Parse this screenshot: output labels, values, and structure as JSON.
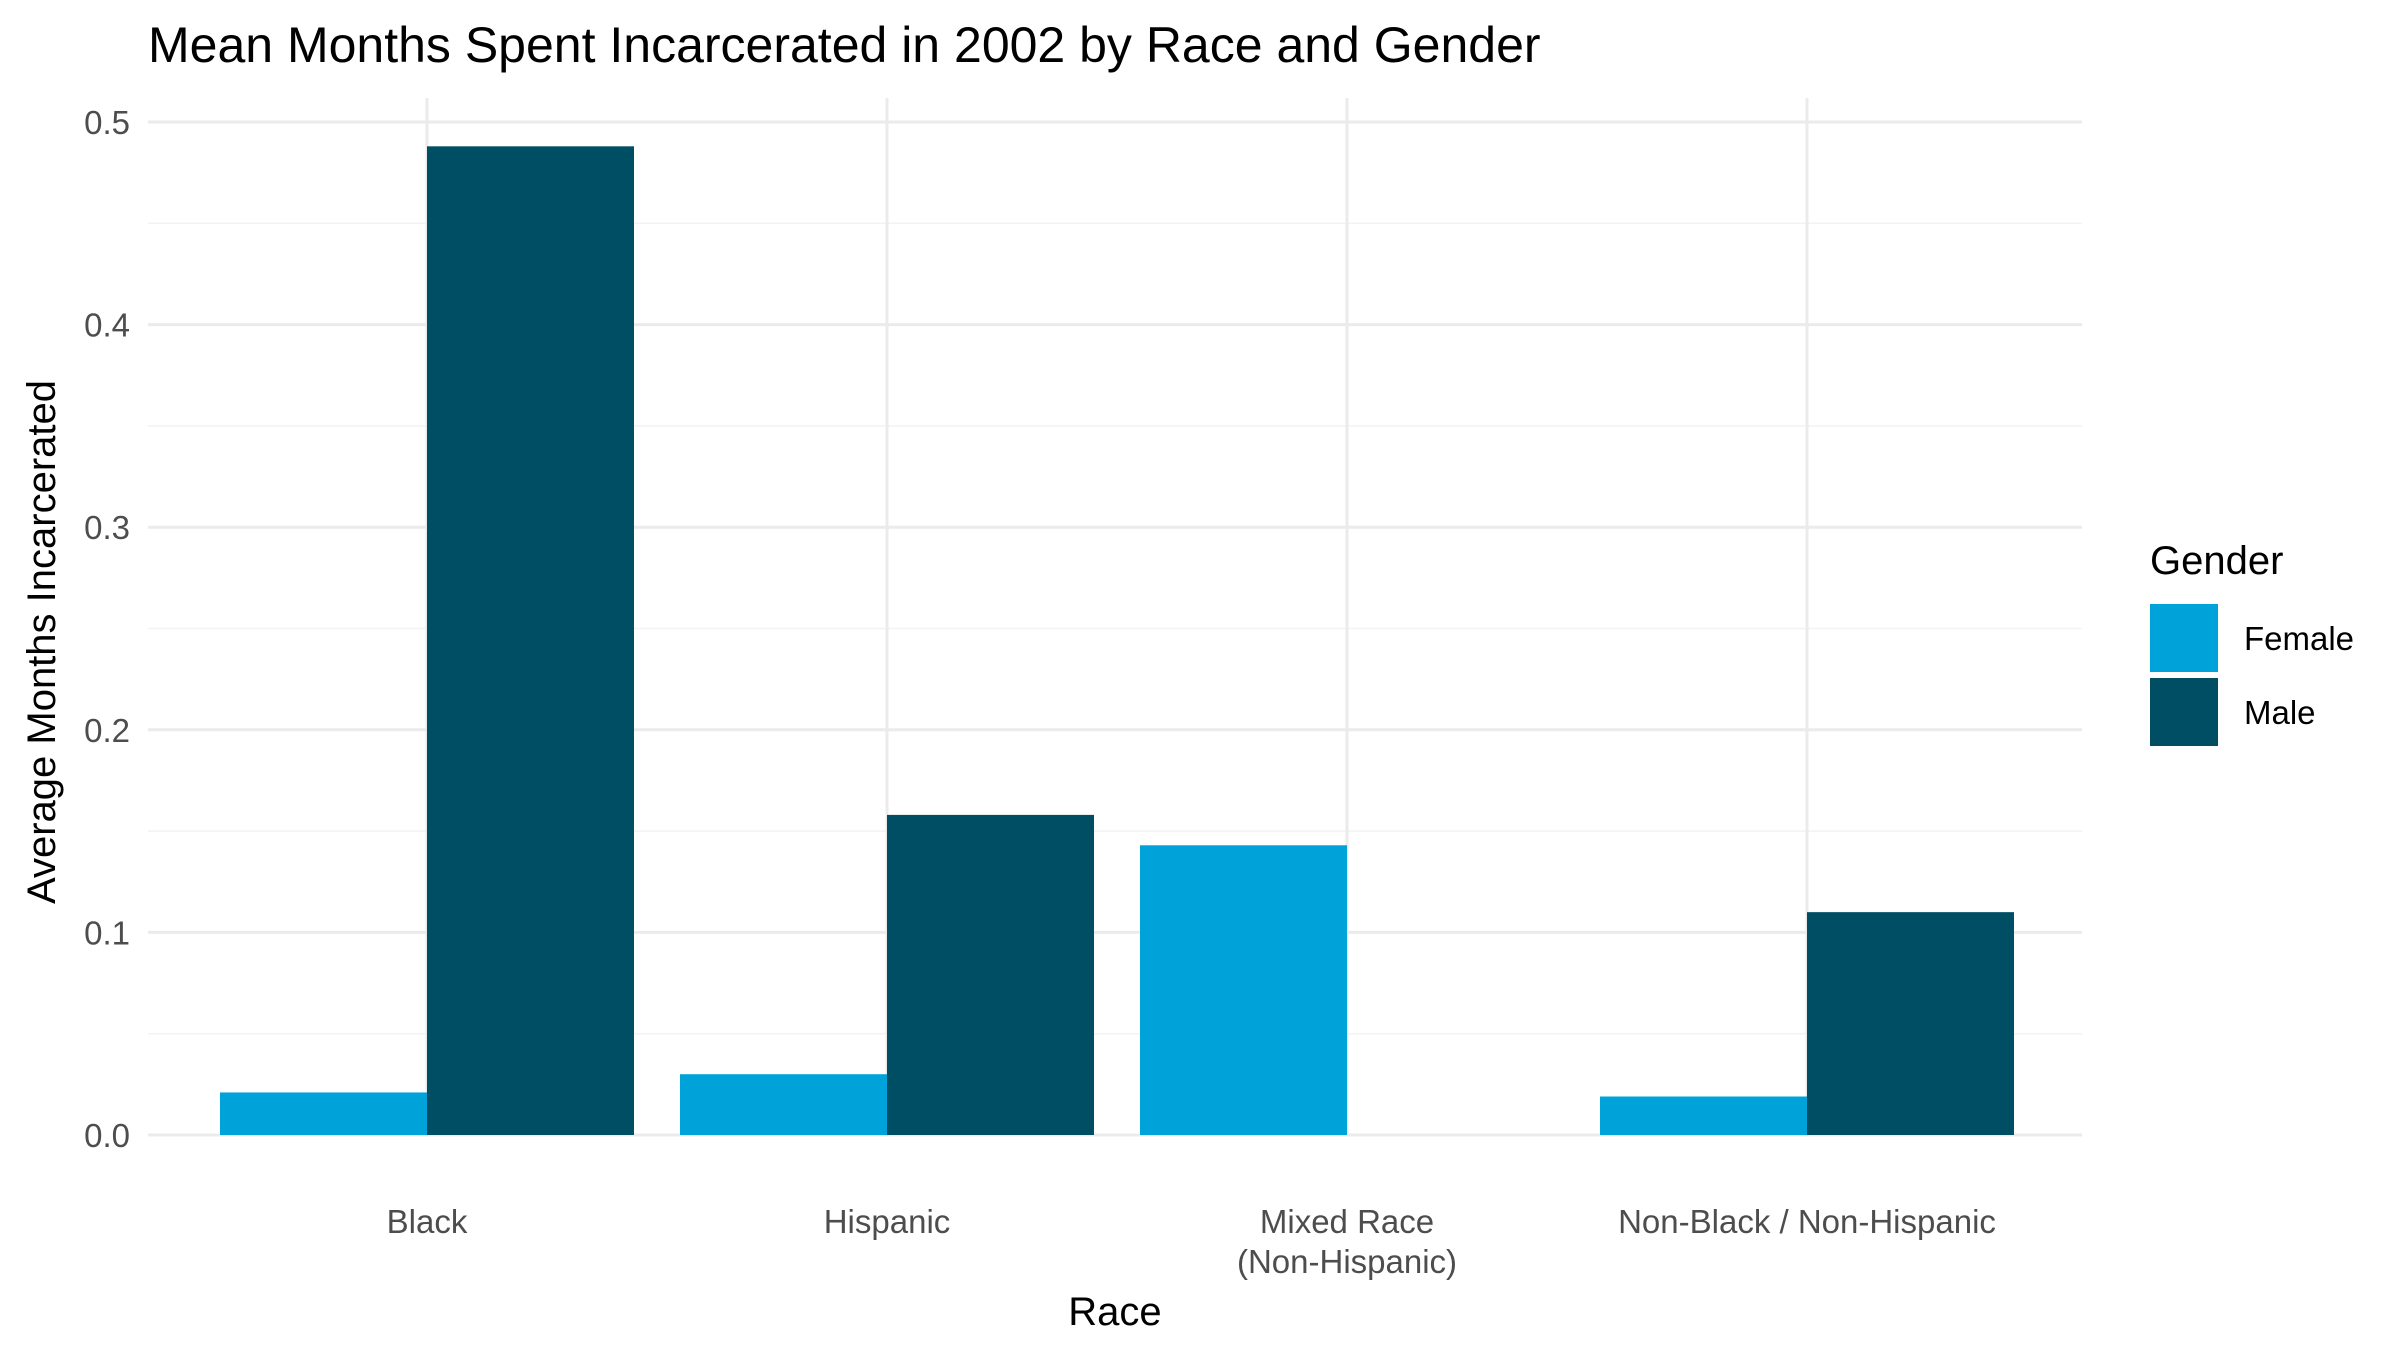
{
  "chart_data": {
    "type": "bar",
    "title": "Mean Months Spent Incarcerated in 2002 by Race and Gender",
    "xlabel": "Race",
    "ylabel": "Average Months Incarcerated",
    "categories": [
      "Black",
      "Hispanic",
      "Mixed Race\n(Non-Hispanic)",
      "Non-Black / Non-Hispanic"
    ],
    "series": [
      {
        "name": "Female",
        "values": [
          0.021,
          0.03,
          0.143,
          0.019
        ],
        "color": "#00a3d9"
      },
      {
        "name": "Male",
        "values": [
          0.488,
          0.158,
          0,
          0.11
        ],
        "color": "#004e64"
      }
    ],
    "ylim": [
      0,
      0.5
    ],
    "yticks": [
      0.0,
      0.1,
      0.2,
      0.3,
      0.4,
      0.5
    ],
    "ytick_labels": [
      "0.0",
      "0.1",
      "0.2",
      "0.3",
      "0.4",
      "0.5"
    ],
    "grid": true,
    "legend": {
      "title": "Gender",
      "position": "right"
    }
  }
}
